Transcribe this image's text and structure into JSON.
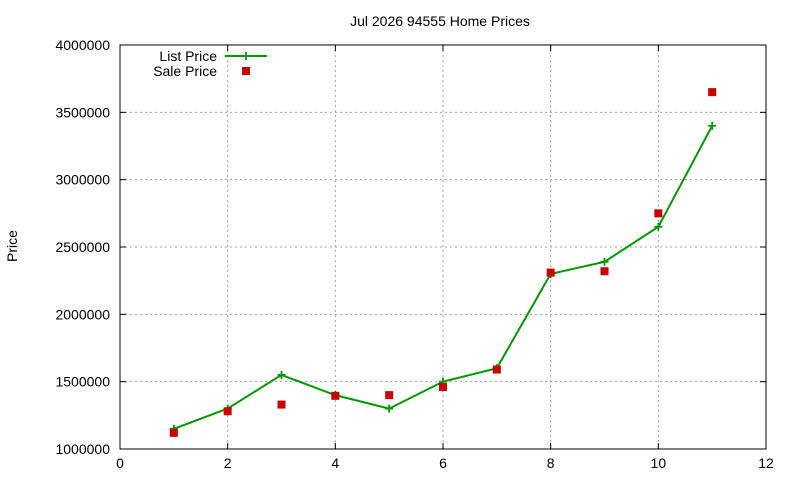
{
  "chart_data": {
    "type": "line",
    "title": "Jul 2026 94555 Home Prices",
    "xlabel": "",
    "ylabel": "Price",
    "xlim": [
      0,
      12
    ],
    "ylim": [
      1000000,
      4000000
    ],
    "xticks": [
      0,
      2,
      4,
      6,
      8,
      10,
      12
    ],
    "yticks": [
      1000000,
      1500000,
      2000000,
      2500000,
      3000000,
      3500000,
      4000000
    ],
    "grid": true,
    "legend_position": "top-left",
    "series": [
      {
        "name": "List Price",
        "type": "line",
        "marker": "plus",
        "color": "#009900",
        "x": [
          1,
          2,
          3,
          4,
          5,
          6,
          7,
          8,
          9,
          10,
          11
        ],
        "y": [
          1150000,
          1300000,
          1550000,
          1400000,
          1300000,
          1500000,
          1600000,
          2300000,
          2390000,
          2650000,
          3400000
        ]
      },
      {
        "name": "Sale Price",
        "type": "scatter",
        "marker": "square",
        "color": "#cc0000",
        "x": [
          1,
          2,
          3,
          4,
          5,
          6,
          7,
          8,
          9,
          10,
          11
        ],
        "y": [
          1120000,
          1280000,
          1330000,
          1395000,
          1400000,
          1460000,
          1590000,
          2310000,
          2320000,
          2750000,
          3650000
        ]
      }
    ]
  }
}
